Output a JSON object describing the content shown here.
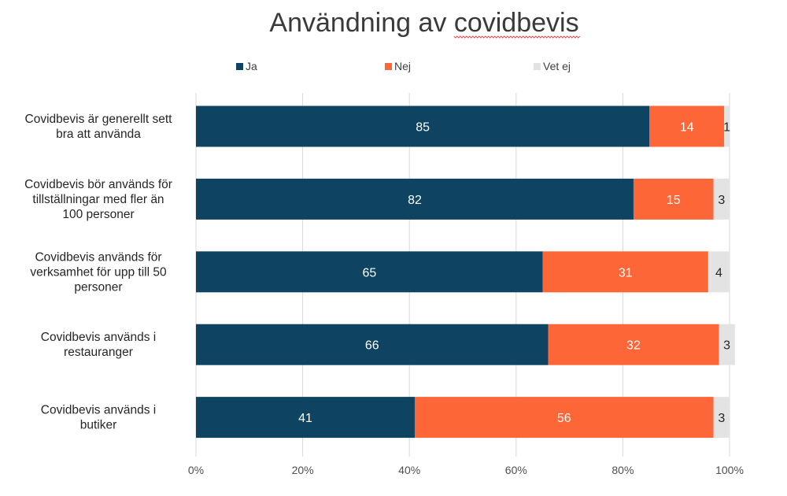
{
  "chart_data": {
    "type": "bar",
    "orientation": "horizontal",
    "stacked": true,
    "title": "Användning av covidbevis",
    "categories": [
      [
        "Covidbevis är generellt sett",
        "bra att använda"
      ],
      [
        "Covidbevis bör används för",
        "tillställningar med fler än",
        "100 personer"
      ],
      [
        "Covidbevis används för",
        "verksamhet för upp till 50",
        "personer"
      ],
      [
        "Covidbevis används i",
        "restauranger"
      ],
      [
        "Covidbevis används i",
        "butiker"
      ]
    ],
    "series": [
      {
        "name": "Ja",
        "color": "#0e4462",
        "label_color": "#ffffff",
        "values": [
          85,
          82,
          65,
          66,
          41
        ]
      },
      {
        "name": "Nej",
        "color": "#fd6637",
        "label_color": "#ffffff",
        "values": [
          14,
          15,
          31,
          32,
          56
        ]
      },
      {
        "name": "Vet ej",
        "color": "#e3e3e3",
        "label_color": "#262626",
        "values": [
          1,
          3,
          4,
          3,
          3
        ]
      }
    ],
    "xlim": [
      0,
      100
    ],
    "xticks": [
      "0%",
      "20%",
      "40%",
      "60%",
      "80%",
      "100%"
    ],
    "grid": true,
    "legend_position": "top"
  }
}
